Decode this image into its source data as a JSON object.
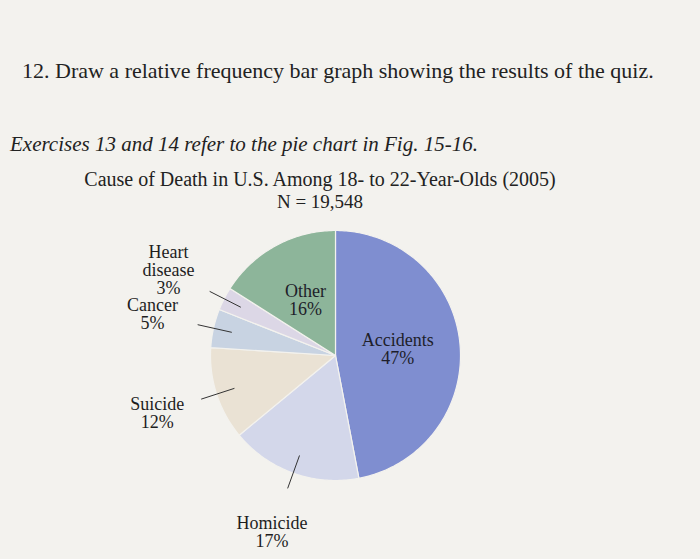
{
  "chart_data": {
    "type": "pie",
    "title": "Cause of Death in U.S. Among 18- to 22-Year-Olds (2005)",
    "subtitle": "N = 19,548",
    "annotations": [
      "12. Draw a relative frequency bar graph showing the results of the quiz.",
      "Exercises 13 and 14 refer to the pie chart in Fig. 15-16."
    ],
    "categories": [
      "Accidents",
      "Homicide",
      "Suicide",
      "Cancer",
      "Heart disease",
      "Other"
    ],
    "values": [
      47,
      17,
      12,
      5,
      3,
      16
    ],
    "value_labels": [
      "47%",
      "17%",
      "12%",
      "5%",
      "3%",
      "16%"
    ],
    "colors": [
      "#7f8ed0",
      "#d3d7ea",
      "#eae2d4",
      "#c8d3e2",
      "#dcd7e6",
      "#8db59a"
    ],
    "data_labels": true
  }
}
